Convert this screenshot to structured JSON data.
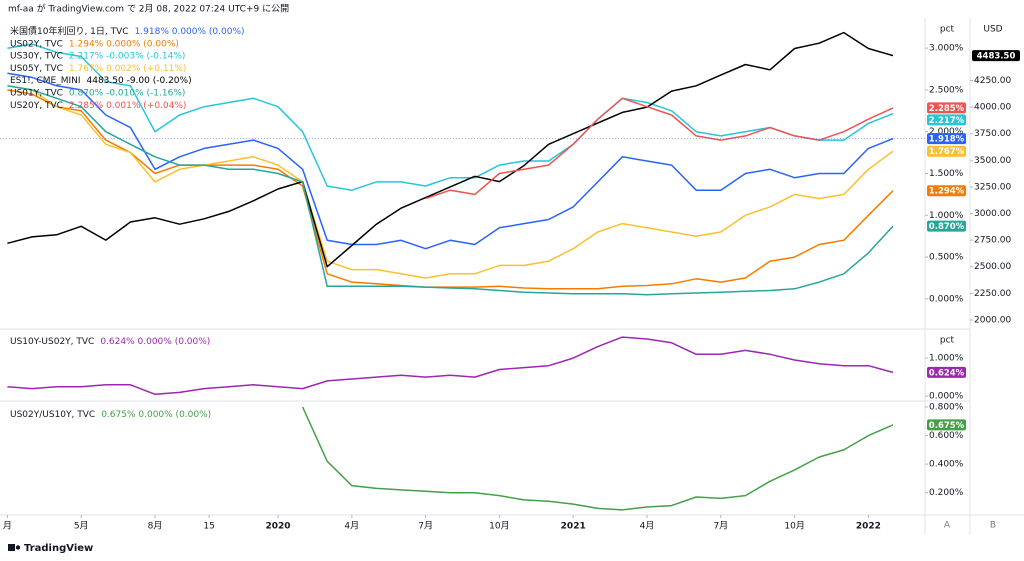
{
  "header": "mf-aa が TradingView.com で 2月 08, 2022 07:24 UTC+9 に公開",
  "footer": "TradingView",
  "axis_buttons": [
    "A",
    "B"
  ],
  "chart_data": [
    {
      "type": "line",
      "x": [
        1,
        2,
        3,
        4,
        5,
        6,
        7,
        8,
        9,
        10,
        11,
        12,
        13,
        14,
        15,
        16,
        17,
        18,
        19,
        20,
        21,
        22,
        23,
        24,
        25,
        26,
        27,
        28,
        29,
        30,
        31,
        32,
        33,
        34,
        35,
        36,
        37
      ],
      "xlim": [
        0.7,
        38.3
      ],
      "ylim": [
        -0.337,
        3.337
      ],
      "yticks": [
        {
          "value": 0,
          "label": "0.000%"
        },
        {
          "value": 0.5,
          "label": "0.500%"
        },
        {
          "value": 1,
          "label": "1.000%"
        },
        {
          "value": 1.5,
          "label": "1.500%"
        },
        {
          "value": 2,
          "label": "2.000%"
        },
        {
          "value": 2.5,
          "label": "2.500%"
        },
        {
          "value": 3,
          "label": "3.000%"
        }
      ],
      "y_unit": "pct",
      "y2lim": [
        1934,
        4818
      ],
      "y2ticks": [
        {
          "value": 2000,
          "label": "2000.00"
        },
        {
          "value": 2250,
          "label": "2250.00"
        },
        {
          "value": 2500,
          "label": "2500.00"
        },
        {
          "value": 2750,
          "label": "2750.00"
        },
        {
          "value": 3000,
          "label": "3000.00"
        },
        {
          "value": 3250,
          "label": "3250.00"
        },
        {
          "value": 3500,
          "label": "3500.00"
        },
        {
          "value": 3750,
          "label": "3750.00"
        },
        {
          "value": 4000,
          "label": "4000.00"
        },
        {
          "value": 4250,
          "label": "4250.00"
        }
      ],
      "y2_unit": "USD",
      "series": [
        {
          "name": "米国債10年利回り, 1日, TVC",
          "stats": "1.918%  0.000% (0.00%)",
          "color": "#2962ff",
          "last_label": "1.918%",
          "dashed_last": true,
          "values": [
            2.7,
            2.65,
            2.55,
            2.5,
            2.2,
            2.05,
            1.55,
            1.7,
            1.8,
            1.85,
            1.9,
            1.8,
            1.55,
            0.7,
            0.65,
            0.65,
            0.7,
            0.6,
            0.7,
            0.65,
            0.85,
            0.9,
            0.95,
            1.1,
            1.4,
            1.7,
            1.65,
            1.6,
            1.3,
            1.3,
            1.5,
            1.55,
            1.45,
            1.5,
            1.5,
            1.8,
            1.918
          ]
        },
        {
          "name": "US02Y, TVC",
          "stats": "1.294%  0.000% (0.00%)",
          "color": "#f57c00",
          "last_label": "1.294%",
          "values": [
            2.5,
            2.45,
            2.3,
            2.25,
            1.9,
            1.75,
            1.5,
            1.6,
            1.6,
            1.6,
            1.6,
            1.55,
            1.35,
            0.3,
            0.2,
            0.18,
            0.16,
            0.14,
            0.14,
            0.14,
            0.15,
            0.13,
            0.12,
            0.12,
            0.12,
            0.15,
            0.16,
            0.18,
            0.24,
            0.2,
            0.25,
            0.45,
            0.5,
            0.65,
            0.7,
            1.0,
            1.294
          ]
        },
        {
          "name": "US30Y, TVC",
          "stats": "2.217%  -0.003% (-0.14%)",
          "color": "#26c6da",
          "last_label": "2.217%",
          "values": [
            3.0,
            3.05,
            2.95,
            2.9,
            2.6,
            2.55,
            2.0,
            2.2,
            2.3,
            2.35,
            2.4,
            2.3,
            2.0,
            1.35,
            1.3,
            1.4,
            1.4,
            1.35,
            1.45,
            1.45,
            1.6,
            1.65,
            1.65,
            1.85,
            2.15,
            2.4,
            2.35,
            2.25,
            2.0,
            1.95,
            2.0,
            2.05,
            1.95,
            1.9,
            1.9,
            2.1,
            2.217
          ]
        },
        {
          "name": "US05Y, TVC",
          "stats": "1.767%  0.002% (+0.11%)",
          "color": "#fbc02d",
          "last_label": "1.767%",
          "values": [
            2.55,
            2.5,
            2.3,
            2.2,
            1.85,
            1.75,
            1.4,
            1.55,
            1.6,
            1.65,
            1.7,
            1.6,
            1.4,
            0.45,
            0.35,
            0.35,
            0.3,
            0.25,
            0.3,
            0.3,
            0.4,
            0.4,
            0.45,
            0.6,
            0.8,
            0.9,
            0.85,
            0.8,
            0.75,
            0.8,
            1.0,
            1.1,
            1.25,
            1.2,
            1.25,
            1.55,
            1.767
          ]
        },
        {
          "name": "ES1!, CME_MINI",
          "stats": "4483.50  -9.00 (-0.20%)",
          "color": "#000000",
          "last_label": "4483.50",
          "axis": "y2",
          "values": [
            2720,
            2780,
            2800,
            2880,
            2750,
            2920,
            2960,
            2900,
            2950,
            3020,
            3120,
            3230,
            3300,
            2500,
            2700,
            2900,
            3050,
            3150,
            3250,
            3350,
            3300,
            3450,
            3650,
            3750,
            3850,
            3950,
            4000,
            4150,
            4200,
            4300,
            4400,
            4350,
            4550,
            4600,
            4700,
            4550,
            4483.5
          ]
        },
        {
          "name": "US01Y, TVC",
          "stats": "0.870%  -0.010% (-1.16%)",
          "color": "#26a69a",
          "last_label": "0.870%",
          "values": [
            2.55,
            2.5,
            2.4,
            2.3,
            2.0,
            1.85,
            1.7,
            1.6,
            1.6,
            1.55,
            1.55,
            1.5,
            1.4,
            0.15,
            0.15,
            0.15,
            0.15,
            0.14,
            0.13,
            0.12,
            0.1,
            0.08,
            0.07,
            0.06,
            0.06,
            0.06,
            0.05,
            0.06,
            0.07,
            0.08,
            0.09,
            0.1,
            0.12,
            0.2,
            0.3,
            0.55,
            0.87
          ]
        },
        {
          "name": "US20Y, TVC",
          "stats": "2.285%  0.001% (+0.04%)",
          "color": "#ef5350",
          "last_label": "2.285%",
          "values": [
            null,
            null,
            null,
            null,
            null,
            null,
            null,
            null,
            null,
            null,
            null,
            null,
            null,
            null,
            null,
            null,
            null,
            1.2,
            1.3,
            1.25,
            1.5,
            1.55,
            1.6,
            1.85,
            2.15,
            2.4,
            2.3,
            2.2,
            1.95,
            1.9,
            1.95,
            2.05,
            1.95,
            1.9,
            2.0,
            2.15,
            2.285
          ]
        }
      ]
    },
    {
      "type": "line",
      "x": [
        1,
        2,
        3,
        4,
        5,
        6,
        7,
        8,
        9,
        10,
        11,
        12,
        13,
        14,
        15,
        16,
        17,
        18,
        19,
        20,
        21,
        22,
        23,
        24,
        25,
        26,
        27,
        28,
        29,
        30,
        31,
        32,
        33,
        34,
        35,
        36,
        37
      ],
      "xlim": [
        0.7,
        38.3
      ],
      "ylim": [
        -0.1,
        1.71
      ],
      "yticks": [
        {
          "value": 0,
          "label": "0.000%"
        },
        {
          "value": 1,
          "label": "1.000%"
        }
      ],
      "y_unit": "pct",
      "series": [
        {
          "name": "US10Y-US02Y, TVC",
          "stats": "0.624%  0.000% (0.00%)",
          "color": "#9c27b0",
          "last_label": "0.624%",
          "values": [
            0.25,
            0.2,
            0.25,
            0.25,
            0.3,
            0.3,
            0.05,
            0.1,
            0.2,
            0.25,
            0.3,
            0.25,
            0.2,
            0.4,
            0.45,
            0.5,
            0.55,
            0.5,
            0.55,
            0.5,
            0.7,
            0.75,
            0.8,
            1.0,
            1.3,
            1.55,
            1.5,
            1.4,
            1.1,
            1.1,
            1.2,
            1.1,
            0.95,
            0.85,
            0.8,
            0.8,
            0.624
          ]
        }
      ]
    },
    {
      "type": "line",
      "x": [
        1,
        2,
        3,
        4,
        5,
        6,
        7,
        8,
        9,
        10,
        11,
        12,
        13,
        14,
        15,
        16,
        17,
        18,
        19,
        20,
        21,
        22,
        23,
        24,
        25,
        26,
        27,
        28,
        29,
        30,
        31,
        32,
        33,
        34,
        35,
        36,
        37
      ],
      "xlim": [
        0.7,
        38.3
      ],
      "xticks": [
        {
          "value": 1,
          "label": "月"
        },
        {
          "value": 4,
          "label": "5月"
        },
        {
          "value": 7,
          "label": "8月"
        },
        {
          "value": 9.2,
          "label": "15"
        },
        {
          "value": 12,
          "label": "2020"
        },
        {
          "value": 15,
          "label": "4月"
        },
        {
          "value": 18,
          "label": "7月"
        },
        {
          "value": 21,
          "label": "10月"
        },
        {
          "value": 24,
          "label": "2021"
        },
        {
          "value": 27,
          "label": "4月"
        },
        {
          "value": 30,
          "label": "7月"
        },
        {
          "value": 33,
          "label": "10月"
        },
        {
          "value": 36,
          "label": "2022"
        }
      ],
      "ylim": [
        0.044,
        0.828
      ],
      "yticks": [
        {
          "value": 0.2,
          "label": "0.200%"
        },
        {
          "value": 0.4,
          "label": "0.400%"
        },
        {
          "value": 0.6,
          "label": "0.600%"
        },
        {
          "value": 0.8,
          "label": "0.800%"
        }
      ],
      "series": [
        {
          "name": "US02Y/US10Y, TVC",
          "stats": "0.675%  0.000% (0.00%)",
          "color": "#43a047",
          "last_label": "0.675%",
          "values": [
            null,
            null,
            null,
            null,
            null,
            null,
            null,
            null,
            null,
            null,
            null,
            null,
            0.8,
            0.42,
            0.25,
            0.23,
            0.22,
            0.21,
            0.2,
            0.2,
            0.18,
            0.15,
            0.14,
            0.12,
            0.09,
            0.08,
            0.1,
            0.11,
            0.17,
            0.16,
            0.18,
            0.28,
            0.36,
            0.45,
            0.5,
            0.6,
            0.675
          ]
        }
      ]
    }
  ]
}
